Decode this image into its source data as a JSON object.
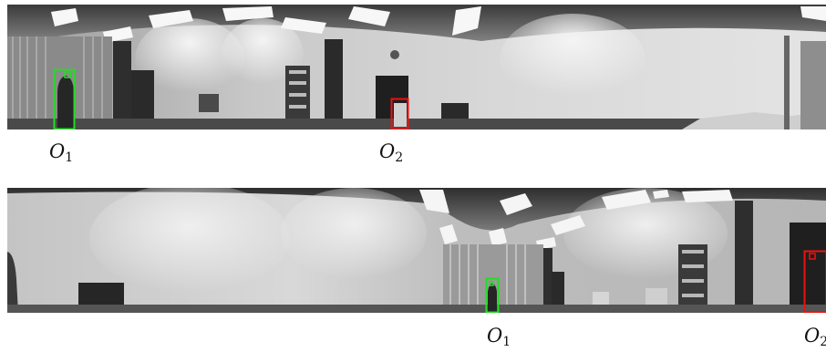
{
  "frames": [
    {
      "name": "top-panorama",
      "markers": [
        {
          "id": "O1",
          "base": "O",
          "sub": "1",
          "color": "#22dd22"
        },
        {
          "id": "O2",
          "base": "O",
          "sub": "2",
          "color": "#ee1111"
        }
      ]
    },
    {
      "name": "bottom-panorama",
      "markers": [
        {
          "id": "O1",
          "base": "O",
          "sub": "1",
          "color": "#22dd22"
        },
        {
          "id": "O2",
          "base": "O",
          "sub": "2",
          "color": "#ee1111"
        }
      ]
    }
  ]
}
